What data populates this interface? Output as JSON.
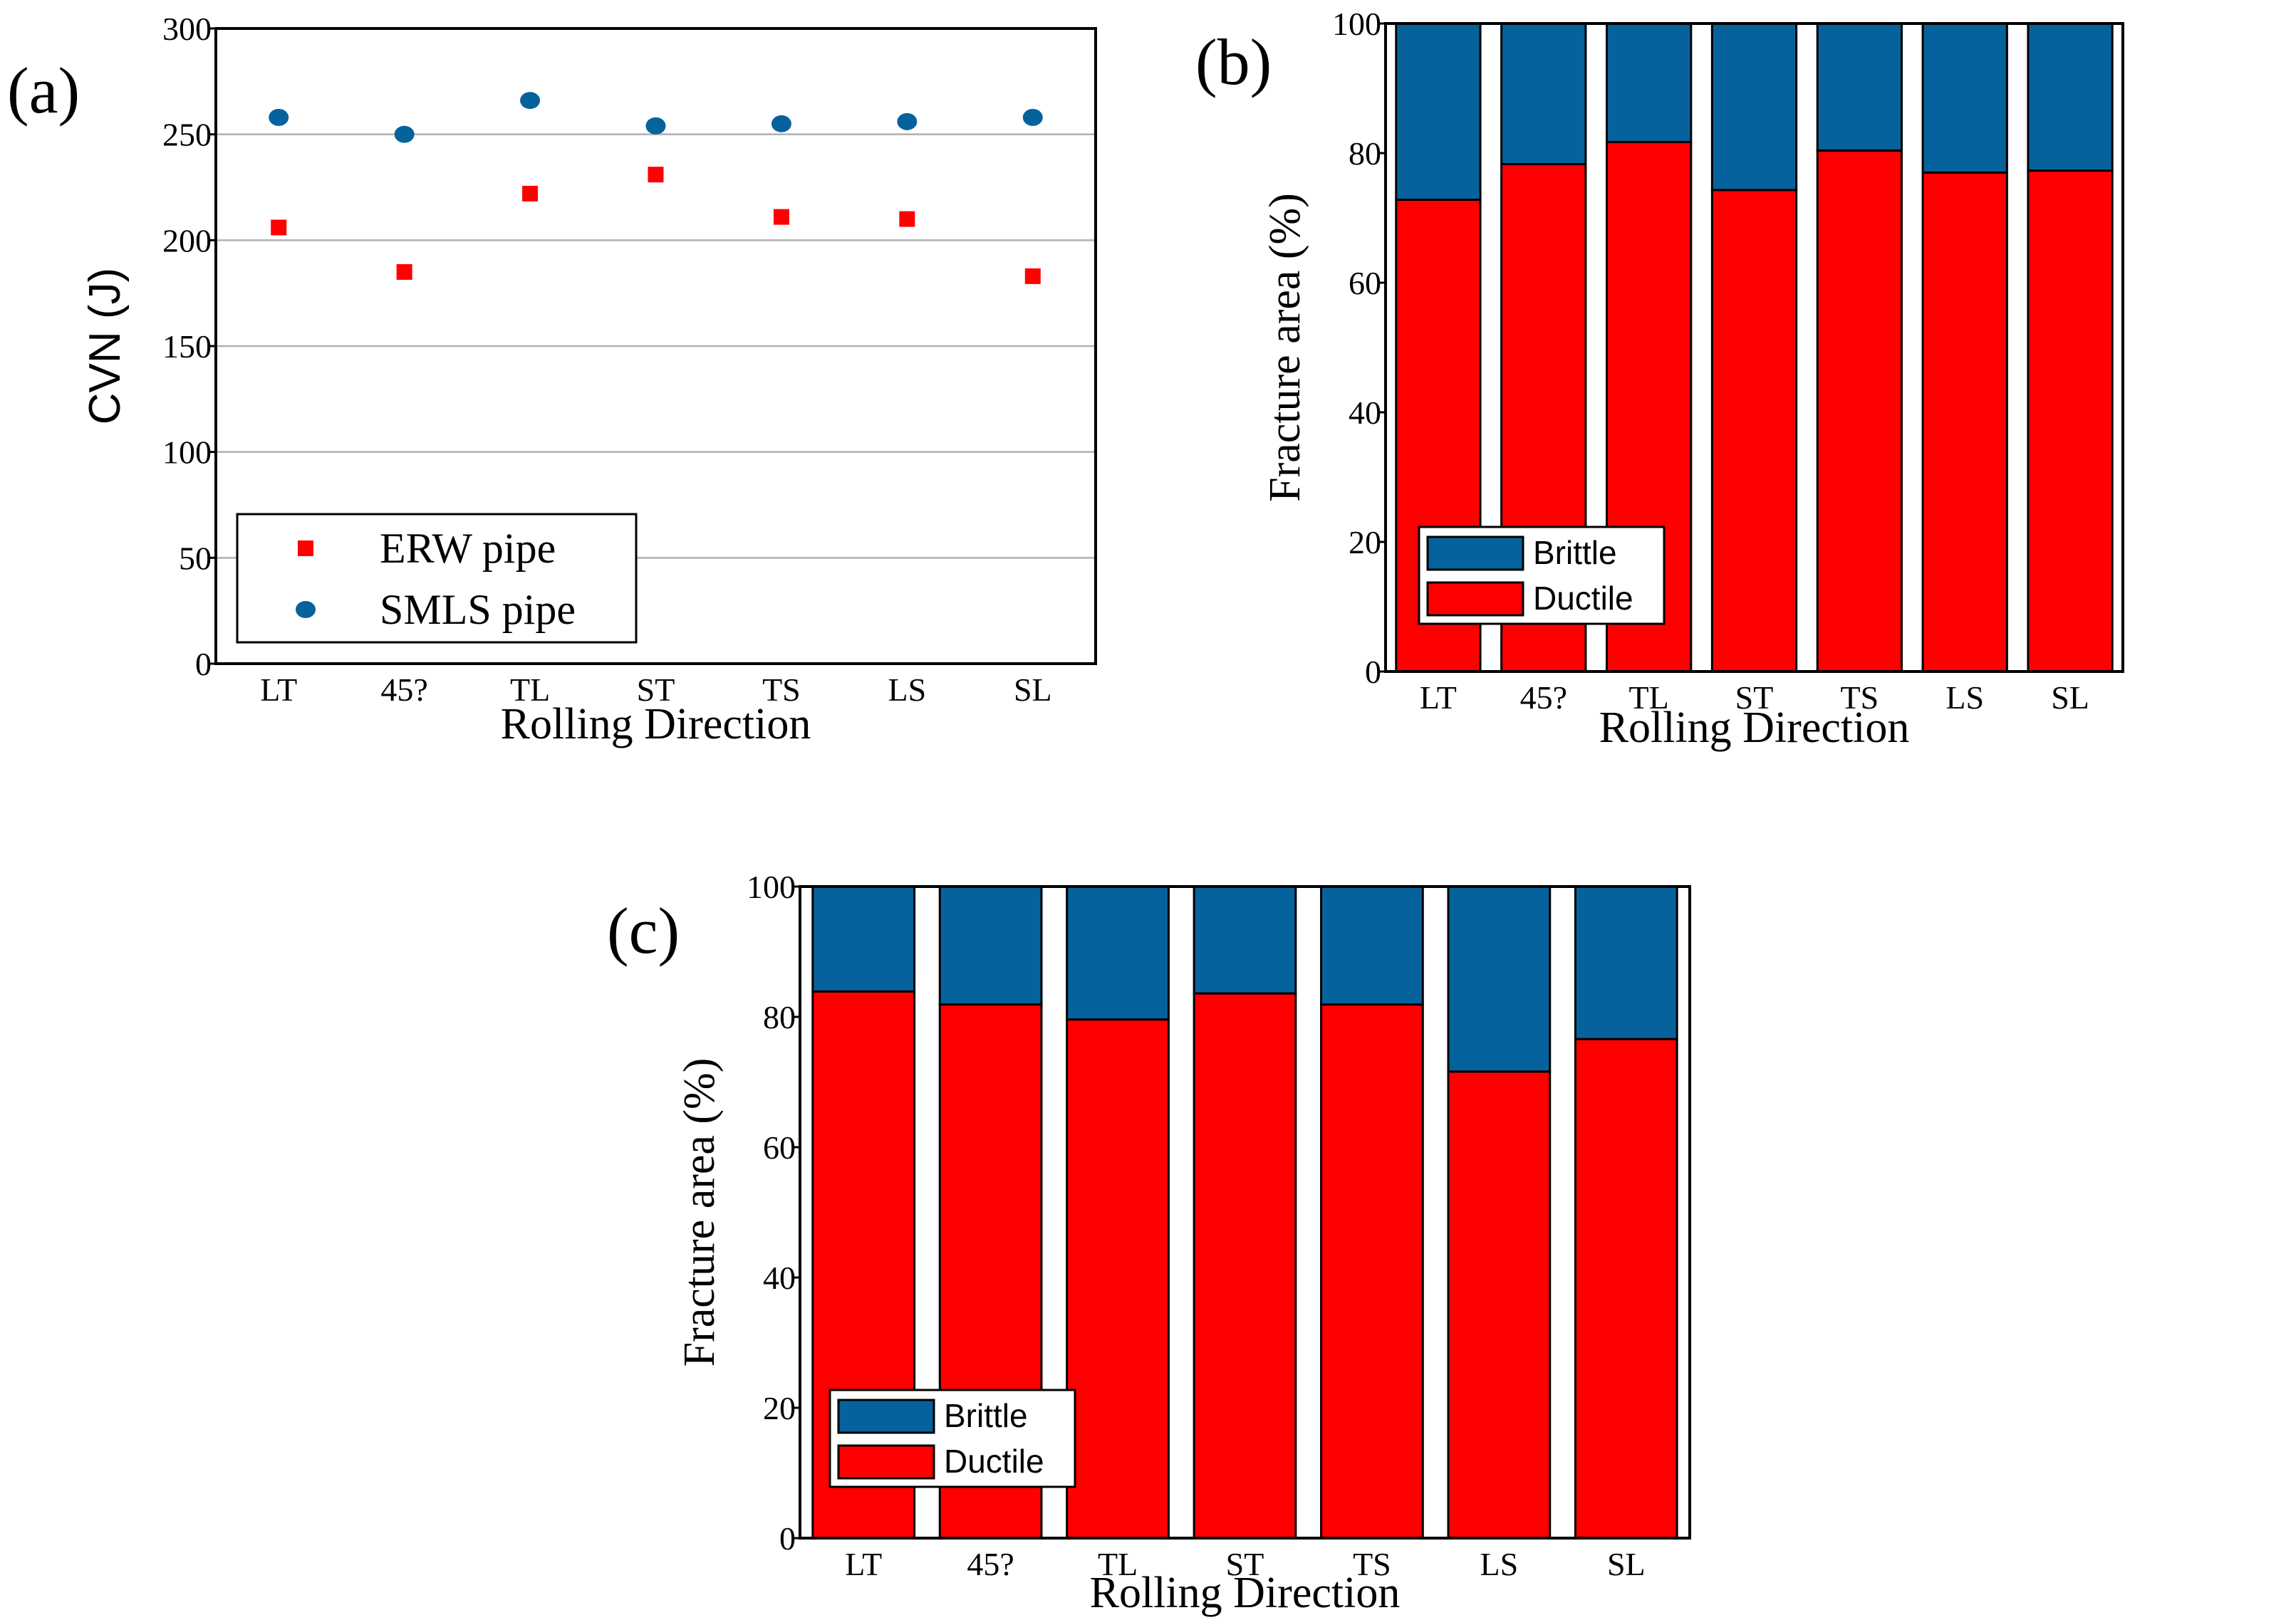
{
  "chart_data": [
    {
      "panel": "(a)",
      "type": "scatter",
      "title": "",
      "xlabel": "Rolling Direction",
      "ylabel": "CVN (J)",
      "categories": [
        "LT",
        "45?",
        "TL",
        "ST",
        "TS",
        "LS",
        "SL"
      ],
      "ylim": [
        0,
        300
      ],
      "yticks": [
        "0",
        "50",
        "100",
        "150",
        "200",
        "250",
        "300"
      ],
      "grid": "horizontal",
      "legend_position": "bottom-left",
      "series": [
        {
          "name": "ERW pipe",
          "marker": "square",
          "color": "#ff0000",
          "values": [
            206,
            185,
            222,
            231,
            211,
            210,
            183
          ]
        },
        {
          "name": "SMLS pipe",
          "marker": "circle",
          "color": "#06629c",
          "values": [
            258,
            250,
            266,
            254,
            255,
            256,
            258
          ]
        }
      ]
    },
    {
      "panel": "(b)",
      "type": "bar",
      "stacked": true,
      "title": "",
      "xlabel": "Rolling Direction",
      "ylabel": "Fracture area (%)",
      "categories": [
        "LT",
        "45?",
        "TL",
        "ST",
        "TS",
        "LS",
        "SL"
      ],
      "ylim": [
        0,
        100
      ],
      "yticks": [
        "0",
        "20",
        "40",
        "60",
        "80",
        "100"
      ],
      "grid": "none",
      "legend_position": "bottom-left",
      "series": [
        {
          "name": "Ductile",
          "color": "#ff0000",
          "values": [
            72.8,
            78.3,
            81.7,
            74.3,
            80.4,
            77.0,
            77.3
          ]
        },
        {
          "name": "Brittle",
          "color": "#06629c",
          "values": [
            27.2,
            21.7,
            18.3,
            25.7,
            19.6,
            23.0,
            22.7
          ]
        }
      ],
      "legend_order": [
        "Brittle",
        "Ductile"
      ]
    },
    {
      "panel": "(c)",
      "type": "bar",
      "stacked": true,
      "title": "",
      "xlabel": "Rolling Direction",
      "ylabel": "Fracture area (%)",
      "categories": [
        "LT",
        "45?",
        "TL",
        "ST",
        "TS",
        "LS",
        "SL"
      ],
      "ylim": [
        0,
        100
      ],
      "yticks": [
        "0",
        "20",
        "40",
        "60",
        "80",
        "100"
      ],
      "grid": "none",
      "legend_position": "bottom-left",
      "series": [
        {
          "name": "Ductile",
          "color": "#ff0000",
          "values": [
            83.9,
            81.9,
            79.6,
            83.6,
            81.9,
            71.6,
            76.6
          ]
        },
        {
          "name": "Brittle",
          "color": "#06629c",
          "values": [
            16.1,
            18.1,
            20.4,
            16.4,
            18.1,
            28.4,
            23.4
          ]
        }
      ],
      "legend_order": [
        "Brittle",
        "Ductile"
      ]
    }
  ]
}
